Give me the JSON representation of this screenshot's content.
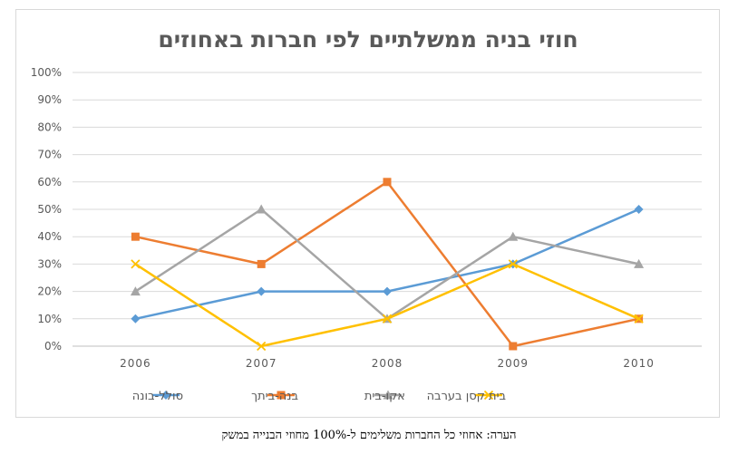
{
  "chart_data": {
    "type": "line",
    "title": "חוזי בניה ממשלתיים לפי חברות באחוזים",
    "xlabel": "",
    "ylabel": "",
    "categories": [
      "2006",
      "2007",
      "2008",
      "2009",
      "2010"
    ],
    "ylim": [
      0,
      100
    ],
    "yticks": [
      "0%",
      "10%",
      "20%",
      "30%",
      "40%",
      "50%",
      "60%",
      "70%",
      "80%",
      "90%",
      "100%"
    ],
    "grid": true,
    "legend_position": "bottom",
    "series": [
      {
        "name": "סולל-בונה",
        "values": [
          10,
          20,
          20,
          30,
          50
        ],
        "color": "#5b9bd5",
        "marker": "diamond"
      },
      {
        "name": "בנה-ביתך",
        "values": [
          40,
          30,
          60,
          0,
          10
        ],
        "color": "#ed7d31",
        "marker": "square"
      },
      {
        "name": "אקו-בית",
        "values": [
          20,
          50,
          10,
          40,
          30
        ],
        "color": "#a5a5a5",
        "marker": "triangle"
      },
      {
        "name": "בית קסן בערבה",
        "values": [
          30,
          0,
          10,
          30,
          10
        ],
        "color": "#ffc000",
        "marker": "x"
      }
    ]
  },
  "note": "הערה: אחוזי כל החברות משלימים ל-100% מחוזי הבנייה במשק"
}
